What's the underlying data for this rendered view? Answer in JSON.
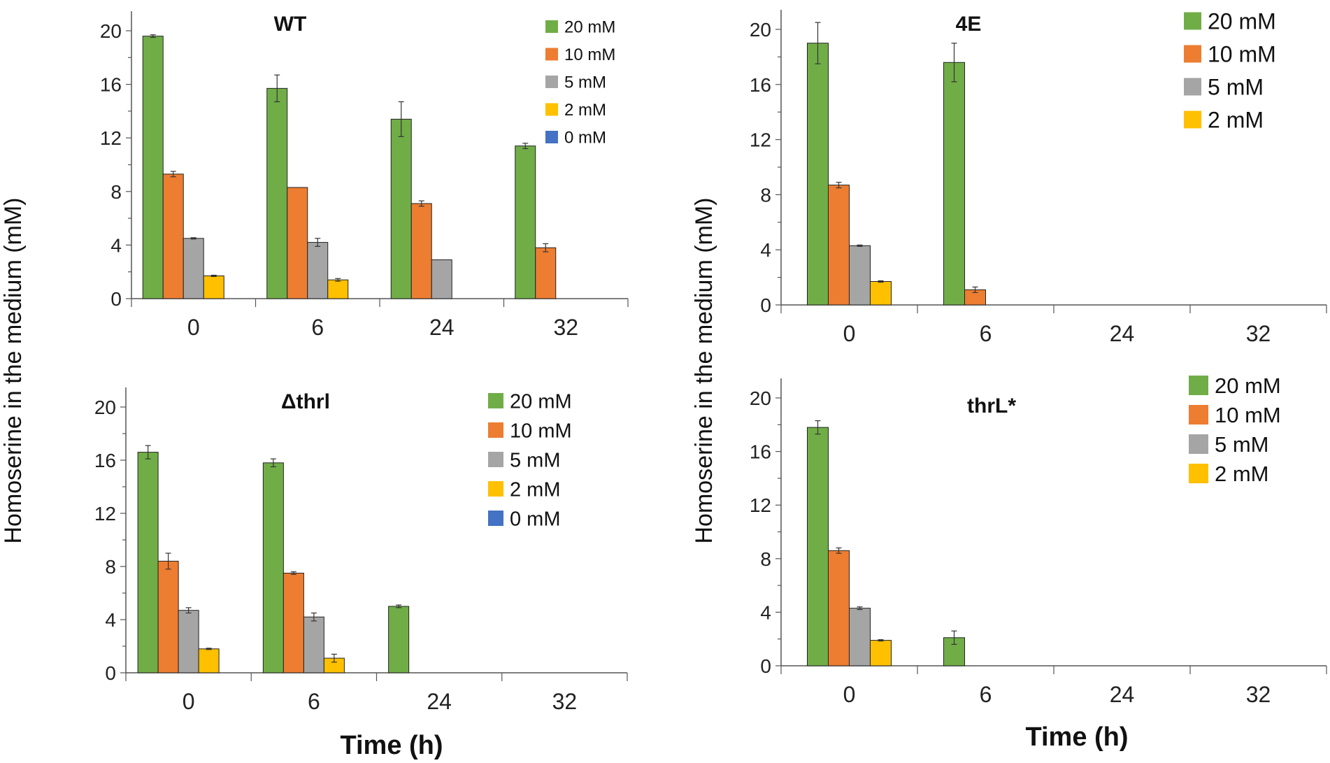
{
  "figure": {
    "ylabel_left": "Homoserine in the medium (mM)",
    "ylabel_right": "Homoserine in the medium (mM)",
    "xlabel_left": "Time (h)",
    "xlabel_right": "Time (h)"
  },
  "colors": {
    "20 mM": "#70ad47",
    "10 mM": "#ed7d31",
    "5 mM": "#a5a5a5",
    "2 mM": "#ffc000",
    "0 mM": "#4472c4"
  },
  "chart_data": [
    {
      "type": "bar",
      "title": "WT",
      "categories": [
        "0",
        "6",
        "24",
        "32"
      ],
      "ylim": [
        0,
        20
      ],
      "yticks": [
        "0",
        "4",
        "8",
        "12",
        "16",
        "20"
      ],
      "legend": [
        "20 mM",
        "10 mM",
        "5 mM",
        "2 mM",
        "0 mM"
      ],
      "series": [
        {
          "name": "20 mM",
          "values": [
            19.6,
            15.7,
            13.4,
            11.4
          ],
          "errors": [
            0.1,
            1.0,
            1.3,
            0.2
          ]
        },
        {
          "name": "10 mM",
          "values": [
            9.3,
            8.3,
            7.1,
            3.8
          ],
          "errors": [
            0.2,
            0.0,
            0.2,
            0.3
          ]
        },
        {
          "name": "5 mM",
          "values": [
            4.5,
            4.2,
            2.9,
            0
          ],
          "errors": [
            0.05,
            0.3,
            0.0,
            0
          ]
        },
        {
          "name": "2 mM",
          "values": [
            1.7,
            1.4,
            0,
            0
          ],
          "errors": [
            0.05,
            0.1,
            0,
            0
          ]
        },
        {
          "name": "0 mM",
          "values": [
            0,
            0,
            0,
            0
          ],
          "errors": [
            0,
            0,
            0,
            0
          ]
        }
      ]
    },
    {
      "type": "bar",
      "title": "4E",
      "categories": [
        "0",
        "6",
        "24",
        "32"
      ],
      "ylim": [
        0,
        20
      ],
      "yticks": [
        "0",
        "4",
        "8",
        "12",
        "16",
        "20"
      ],
      "legend": [
        "20 mM",
        "10 mM",
        "5 mM",
        "2 mM"
      ],
      "series": [
        {
          "name": "20 mM",
          "values": [
            19.0,
            17.6,
            0,
            0
          ],
          "errors": [
            1.5,
            1.4,
            0,
            0
          ]
        },
        {
          "name": "10 mM",
          "values": [
            8.7,
            1.1,
            0,
            0
          ],
          "errors": [
            0.2,
            0.2,
            0,
            0
          ]
        },
        {
          "name": "5 mM",
          "values": [
            4.3,
            0,
            0,
            0
          ],
          "errors": [
            0.05,
            0,
            0,
            0
          ]
        },
        {
          "name": "2 mM",
          "values": [
            1.7,
            0,
            0,
            0
          ],
          "errors": [
            0.05,
            0,
            0,
            0
          ]
        }
      ]
    },
    {
      "type": "bar",
      "title": "Δthrl",
      "categories": [
        "0",
        "6",
        "24",
        "32"
      ],
      "ylim": [
        0,
        20
      ],
      "yticks": [
        "0",
        "4",
        "8",
        "12",
        "16",
        "20"
      ],
      "legend": [
        "20 mM",
        "10 mM",
        "5 mM",
        "2 mM",
        "0 mM"
      ],
      "series": [
        {
          "name": "20 mM",
          "values": [
            16.6,
            15.8,
            5.0,
            0
          ],
          "errors": [
            0.5,
            0.3,
            0.1,
            0
          ]
        },
        {
          "name": "10 mM",
          "values": [
            8.4,
            7.5,
            0,
            0
          ],
          "errors": [
            0.6,
            0.1,
            0,
            0
          ]
        },
        {
          "name": "5 mM",
          "values": [
            4.7,
            4.2,
            0,
            0
          ],
          "errors": [
            0.2,
            0.3,
            0,
            0
          ]
        },
        {
          "name": "2 mM",
          "values": [
            1.8,
            1.1,
            0,
            0
          ],
          "errors": [
            0.05,
            0.3,
            0,
            0
          ]
        },
        {
          "name": "0 mM",
          "values": [
            0,
            0,
            0,
            0
          ],
          "errors": [
            0,
            0,
            0,
            0
          ]
        }
      ]
    },
    {
      "type": "bar",
      "title": "thrL*",
      "categories": [
        "0",
        "6",
        "24",
        "32"
      ],
      "ylim": [
        0,
        20
      ],
      "yticks": [
        "0",
        "4",
        "8",
        "12",
        "16",
        "20"
      ],
      "legend": [
        "20 mM",
        "10 mM",
        "5 mM",
        "2 mM"
      ],
      "series": [
        {
          "name": "20 mM",
          "values": [
            17.8,
            2.1,
            0,
            0
          ],
          "errors": [
            0.5,
            0.5,
            0,
            0
          ]
        },
        {
          "name": "10 mM",
          "values": [
            8.6,
            0,
            0,
            0
          ],
          "errors": [
            0.2,
            0,
            0,
            0
          ]
        },
        {
          "name": "5 mM",
          "values": [
            4.3,
            0,
            0,
            0
          ],
          "errors": [
            0.1,
            0,
            0,
            0
          ]
        },
        {
          "name": "2 mM",
          "values": [
            1.9,
            0,
            0,
            0
          ],
          "errors": [
            0.05,
            0,
            0,
            0
          ]
        }
      ]
    }
  ]
}
